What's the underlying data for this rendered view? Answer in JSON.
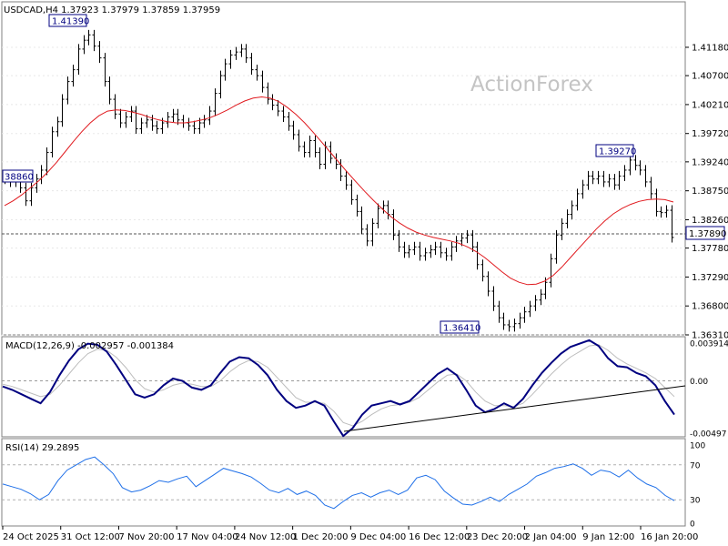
{
  "chart_data": [
    {
      "type": "line",
      "panel": "price",
      "title": "USDCAD,H4  1.37923 1.37979 1.37859 1.37959",
      "watermark": "ActionForex",
      "ylim": [
        1.3631,
        1.4195
      ],
      "y_ticks": [
        "1.41180",
        "1.40700",
        "1.40210",
        "1.39720",
        "1.39240",
        "1.38750",
        "1.38260",
        "1.37780",
        "1.37290",
        "1.36800",
        "1.36310"
      ],
      "current_price": "1.37890",
      "callouts": [
        "1.41390",
        "38860",
        "1.39270",
        "1.36410"
      ],
      "series": [
        {
          "role": "price",
          "color": "#000000",
          "values": [
            1.3895,
            1.389,
            1.39,
            1.388,
            1.3858,
            1.388,
            1.3895,
            1.391,
            1.394,
            1.3975,
            1.3992,
            1.403,
            1.406,
            1.408,
            1.4115,
            1.413,
            1.4139,
            1.412,
            1.41,
            1.406,
            1.403,
            1.4005,
            1.399,
            1.4,
            1.401,
            1.398,
            1.399,
            1.3995,
            1.3985,
            1.398,
            1.399,
            1.4,
            1.4005,
            1.3995,
            1.399,
            1.3985,
            1.398,
            1.399,
            1.3995,
            1.401,
            1.404,
            1.407,
            1.409,
            1.4105,
            1.411,
            1.4115,
            1.41,
            1.408,
            1.407,
            1.405,
            1.403,
            1.402,
            1.401,
            1.4,
            1.3985,
            1.397,
            1.395,
            1.394,
            1.396,
            1.394,
            1.392,
            1.395,
            1.393,
            1.392,
            1.39,
            1.3885,
            1.386,
            1.384,
            1.381,
            1.379,
            1.382,
            1.3845,
            1.385,
            1.3835,
            1.38,
            1.378,
            1.377,
            1.3775,
            1.378,
            1.3765,
            1.377,
            1.3775,
            1.378,
            1.377,
            1.3765,
            1.378,
            1.379,
            1.3795,
            1.38,
            1.378,
            1.375,
            1.373,
            1.3705,
            1.368,
            1.366,
            1.3648,
            1.3645,
            1.365,
            1.366,
            1.367,
            1.368,
            1.369,
            1.37,
            1.372,
            1.376,
            1.38,
            1.382,
            1.3835,
            1.385,
            1.387,
            1.3885,
            1.39,
            1.3895,
            1.39,
            1.389,
            1.3895,
            1.3885,
            1.39,
            1.391,
            1.3927,
            1.3918,
            1.391,
            1.389,
            1.387,
            1.384,
            1.3838,
            1.3842,
            1.3796
          ]
        },
        {
          "role": "moving-average",
          "color": "#e0191e",
          "values": [
            1.385,
            1.3858,
            1.3868,
            1.388,
            1.3892,
            1.3906,
            1.3922,
            1.394,
            1.3958,
            1.3975,
            1.399,
            1.4002,
            1.401,
            1.4012,
            1.4011,
            1.4008,
            1.4004,
            1.3999,
            1.3995,
            1.3992,
            1.399,
            1.399,
            1.3992,
            1.3995,
            1.3999,
            1.4005,
            1.4012,
            1.402,
            1.4027,
            1.4032,
            1.4034,
            1.4032,
            1.4026,
            1.4016,
            1.4004,
            1.399,
            1.3974,
            1.3957,
            1.394,
            1.3923,
            1.3906,
            1.389,
            1.3874,
            1.3859,
            1.3845,
            1.3832,
            1.3821,
            1.3812,
            1.3805,
            1.38,
            1.3796,
            1.3793,
            1.379,
            1.3786,
            1.378,
            1.3772,
            1.3762,
            1.375,
            1.3738,
            1.3727,
            1.372,
            1.3716,
            1.3717,
            1.3722,
            1.3732,
            1.3746,
            1.3762,
            1.3778,
            1.3794,
            1.381,
            1.3824,
            1.3836,
            1.3845,
            1.3852,
            1.3857,
            1.386,
            1.3861,
            1.386,
            1.3856
          ]
        }
      ]
    },
    {
      "type": "line",
      "panel": "macd",
      "title": "MACD(12,26,9) -0.002957 -0.001384",
      "ylim": [
        -0.00497,
        0.003914
      ],
      "y_ticks": [
        "0.003914",
        "0.00",
        "-0.00497"
      ],
      "series": [
        {
          "role": "macd",
          "color": "#000080",
          "values": [
            -0.0005,
            -0.0008,
            -0.0012,
            -0.0016,
            -0.002,
            -0.001,
            0.0005,
            0.0018,
            0.0028,
            0.0033,
            0.0032,
            0.0026,
            0.0014,
            0.0001,
            -0.0012,
            -0.0015,
            -0.0012,
            -0.0004,
            0.0002,
            0.0,
            -0.0006,
            -0.0008,
            -0.0004,
            0.0007,
            0.0017,
            0.0021,
            0.002,
            0.0014,
            0.0005,
            -0.0008,
            -0.0018,
            -0.0024,
            -0.0022,
            -0.0018,
            -0.0022,
            -0.0036,
            -0.0049,
            -0.0042,
            -0.003,
            -0.0022,
            -0.002,
            -0.0018,
            -0.0021,
            -0.0018,
            -0.001,
            -0.0002,
            0.0006,
            0.0011,
            0.0005,
            -0.0008,
            -0.0022,
            -0.0028,
            -0.0025,
            -0.002,
            -0.0024,
            -0.0016,
            -0.0004,
            0.0007,
            0.0016,
            0.0024,
            0.003,
            0.0033,
            0.0036,
            0.0031,
            0.002,
            0.0013,
            0.0012,
            0.0007,
            0.0004,
            -0.0004,
            -0.0018,
            -0.003
          ]
        },
        {
          "role": "signal",
          "color": "#bdbdbd",
          "values": [
            -0.0003,
            -0.0005,
            -0.0008,
            -0.0011,
            -0.0014,
            -0.0012,
            -0.0004,
            0.0006,
            0.0016,
            0.0024,
            0.0028,
            0.0027,
            0.0021,
            0.0012,
            0.0001,
            -0.0007,
            -0.001,
            -0.0008,
            -0.0004,
            -0.0002,
            -0.0003,
            -0.0005,
            -0.0005,
            0.0,
            0.0008,
            0.0014,
            0.0018,
            0.0017,
            0.0012,
            0.0003,
            -0.0006,
            -0.0015,
            -0.0019,
            -0.0019,
            -0.002,
            -0.0027,
            -0.0037,
            -0.004,
            -0.0036,
            -0.003,
            -0.0025,
            -0.0022,
            -0.0021,
            -0.0019,
            -0.0015,
            -0.0008,
            -0.0001,
            0.0005,
            0.0006,
            0.0,
            -0.001,
            -0.0018,
            -0.0022,
            -0.0022,
            -0.0023,
            -0.002,
            -0.0012,
            -0.0003,
            0.0006,
            0.0014,
            0.0021,
            0.0026,
            0.0031,
            0.0032,
            0.0027,
            0.002,
            0.0015,
            0.0011,
            0.0007,
            0.0002,
            -0.0006,
            -0.0014
          ]
        }
      ]
    },
    {
      "type": "line",
      "panel": "rsi",
      "title": "RSI(14) 29.2895",
      "ylim": [
        0,
        100
      ],
      "y_ticks": [
        "100",
        "70",
        "30",
        "0"
      ],
      "series": [
        {
          "role": "rsi",
          "color": "#1e6fe8",
          "values": [
            48,
            45,
            42,
            37,
            30,
            36,
            52,
            64,
            70,
            76,
            79,
            70,
            60,
            44,
            39,
            41,
            46,
            52,
            50,
            54,
            57,
            45,
            52,
            59,
            66,
            63,
            60,
            56,
            49,
            41,
            38,
            43,
            36,
            40,
            35,
            24,
            20,
            28,
            35,
            38,
            33,
            38,
            41,
            36,
            41,
            55,
            58,
            53,
            40,
            32,
            25,
            24,
            28,
            33,
            28,
            36,
            42,
            48,
            57,
            61,
            66,
            68,
            71,
            66,
            58,
            64,
            62,
            56,
            64,
            55,
            48,
            44,
            35,
            29
          ]
        }
      ]
    }
  ],
  "x_axis": {
    "labels": [
      "24 Oct 2025",
      "31 Oct 12:00",
      "7 Nov 20:00",
      "17 Nov 04:00",
      "24 Nov 12:00",
      "1 Dec 20:00",
      "9 Dec 04:00",
      "16 Dec 12:00",
      "23 Dec 20:00",
      "2 Jan 04:00",
      "9 Jan 12:00",
      "16 Jan 20:00"
    ]
  }
}
